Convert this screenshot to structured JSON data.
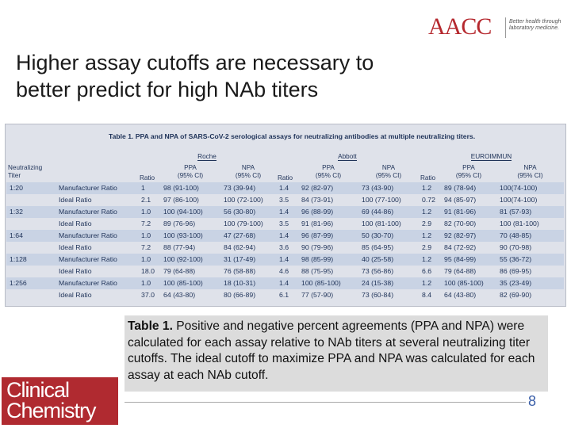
{
  "header": {
    "logo_text": "AACC",
    "logo_tagline": "Better health through laboratory medicine.",
    "brand_color": "#b5282e"
  },
  "slide": {
    "title_line1": "Higher assay cutoffs are necessary to",
    "title_line2": "better predict for high NAb titers",
    "page_number": "8"
  },
  "table": {
    "caption": "Table 1. PPA and NPA of SARS-CoV-2 serological assays for neutralizing antibodies at multiple neutralizing titers.",
    "groups": [
      "Roche",
      "Abbott",
      "EUROIMMUN"
    ],
    "header": {
      "titer_line1": "Neutralizing",
      "titer_line2": "Titer",
      "ratio": "Ratio",
      "ppa": "PPA",
      "npa": "NPA",
      "ci": "(95% CI)"
    },
    "rows": [
      {
        "titer": "1:20",
        "type": "Manufacturer Ratio",
        "r1": "1",
        "ppa1": "98 (91-100)",
        "npa1": "73 (39-94)",
        "r2": "1.4",
        "ppa2": "92 (82-97)",
        "npa2": "73 (43-90)",
        "r3": "1.2",
        "ppa3": "89 (78-94)",
        "npa3": "100(74-100)"
      },
      {
        "titer": "",
        "type": "Ideal Ratio",
        "r1": "2.1",
        "ppa1": "97 (86-100)",
        "npa1": "100 (72-100)",
        "r2": "3.5",
        "ppa2": "84 (73-91)",
        "npa2": "100 (77-100)",
        "r3": "0.72",
        "ppa3": "94 (85-97)",
        "npa3": "100(74-100)"
      },
      {
        "titer": "1:32",
        "type": "Manufacturer Ratio",
        "r1": "1.0",
        "ppa1": "100 (94-100)",
        "npa1": "56 (30-80)",
        "r2": "1.4",
        "ppa2": "96 (88-99)",
        "npa2": "69 (44-86)",
        "r3": "1.2",
        "ppa3": "91 (81-96)",
        "npa3": "81 (57-93)"
      },
      {
        "titer": "",
        "type": "Ideal Ratio",
        "r1": "7.2",
        "ppa1": "89 (76-96)",
        "npa1": "100 (79-100)",
        "r2": "3.5",
        "ppa2": "91 (81-96)",
        "npa2": "100 (81-100)",
        "r3": "2.9",
        "ppa3": "82 (70-90)",
        "npa3": "100 (81-100)"
      },
      {
        "titer": "1:64",
        "type": "Manufacturer Ratio",
        "r1": "1.0",
        "ppa1": "100 (93-100)",
        "npa1": "47 (27-68)",
        "r2": "1.4",
        "ppa2": "96 (87-99)",
        "npa2": "50 (30-70)",
        "r3": "1.2",
        "ppa3": "92 (82-97)",
        "npa3": "70 (48-85)"
      },
      {
        "titer": "",
        "type": "Ideal Ratio",
        "r1": "7.2",
        "ppa1": "88 (77-94)",
        "npa1": "84 (62-94)",
        "r2": "3.6",
        "ppa2": "90 (79-96)",
        "npa2": "85 (64-95)",
        "r3": "2.9",
        "ppa3": "84 (72-92)",
        "npa3": "90 (70-98)"
      },
      {
        "titer": "1:128",
        "type": "Manufacturer Ratio",
        "r1": "1.0",
        "ppa1": "100 (92-100)",
        "npa1": "31 (17-49)",
        "r2": "1.4",
        "ppa2": "98 (85-99)",
        "npa2": "40 (25-58)",
        "r3": "1.2",
        "ppa3": "95 (84-99)",
        "npa3": "55 (36-72)"
      },
      {
        "titer": "",
        "type": "Ideal Ratio",
        "r1": "18.0",
        "ppa1": "79 (64-88)",
        "npa1": "76 (58-88)",
        "r2": "4.6",
        "ppa2": "88 (75-95)",
        "npa2": "73 (56-86)",
        "r3": "6.6",
        "ppa3": "79 (64-88)",
        "npa3": "86 (69-95)"
      },
      {
        "titer": "1:256",
        "type": "Manufacturer Ratio",
        "r1": "1.0",
        "ppa1": "100 (85-100)",
        "npa1": "18 (10-31)",
        "r2": "1.4",
        "ppa2": "100 (85-100)",
        "npa2": "24 (15-38)",
        "r3": "1.2",
        "ppa3": "100 (85-100)",
        "npa3": "35 (23-49)"
      },
      {
        "titer": "",
        "type": "Ideal Ratio",
        "r1": "37.0",
        "ppa1": "64 (43-80)",
        "npa1": "80 (66-89)",
        "r2": "6.1",
        "ppa2": "77 (57-90)",
        "npa2": "73 (60-84)",
        "r3": "8.4",
        "ppa3": "64 (43-80)",
        "npa3": "82 (69-90)"
      }
    ]
  },
  "caption": {
    "label": "Table 1.",
    "text": "Positive and negative percent agreements (PPA and NPA) were calculated for each assay relative to NAb titers at several neutralizing titer cutoffs. The ideal cutoff to maximize PPA and NPA was calculated for each assay at each NAb cutoff."
  },
  "journal_logo": {
    "line1": "Clinical",
    "line2": "Chemistry",
    "color": "#b02a30"
  }
}
